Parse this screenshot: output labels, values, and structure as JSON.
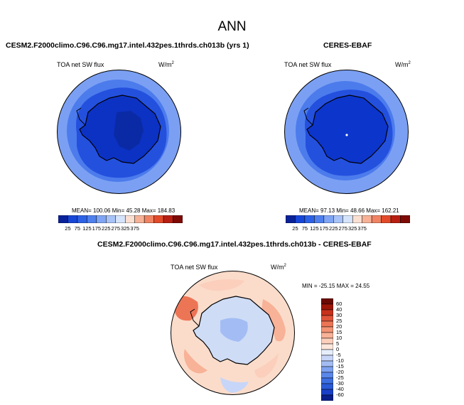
{
  "main_title": "ANN",
  "panels": [
    {
      "case_title": "CESM2.F2000climo.C96.C96.mg17.intel.432pes.1thrds.ch013b (yrs 1)",
      "variable": "TOA net SW flux",
      "units_base": "W/m",
      "units_exp": "2",
      "stats": "MEAN= 100.06  Min=  45.28  Max= 184.83",
      "colorbar_labels": [
        "25",
        "75",
        "125",
        "175",
        "225",
        "275",
        "325",
        "375"
      ]
    },
    {
      "case_title": "CERES-EBAF",
      "variable": "TOA net SW flux",
      "units_base": "W/m",
      "units_exp": "2",
      "stats": "MEAN=  97.13  Min=  48.66  Max= 162.21",
      "colorbar_labels": [
        "25",
        "75",
        "125",
        "175",
        "225",
        "275",
        "325",
        "375"
      ]
    }
  ],
  "diff_panel": {
    "case_title": "CESM2.F2000climo.C96.C96.mg17.intel.432pes.1thrds.ch013b - CERES-EBAF",
    "variable": "TOA net SW flux",
    "units_base": "W/m",
    "units_exp": "2",
    "stats": "MIN = -25.15 MAX =  24.55",
    "colorbar_labels": [
      "60",
      "40",
      "30",
      "25",
      "20",
      "15",
      "10",
      "5",
      "0",
      "-5",
      "-10",
      "-15",
      "-20",
      "-25",
      "-30",
      "-40",
      "-60"
    ]
  },
  "colors": {
    "seq": [
      "#0a2299",
      "#1747d8",
      "#2d62e6",
      "#4f80ee",
      "#7fa5f4",
      "#a8c3f7",
      "#d6e4fb",
      "#fbe0d2",
      "#f6b196",
      "#ef8363",
      "#e24a2a",
      "#b81f12",
      "#7e0a05"
    ],
    "div": [
      "#0b1f8a",
      "#1a3fc7",
      "#2a5ad8",
      "#3d6fe2",
      "#5a88ea",
      "#7ea2f0",
      "#a3bdf4",
      "#c7d6f8",
      "#e6eefb",
      "#fde7dc",
      "#fbcfbc",
      "#f8b297",
      "#f39474",
      "#ec7556",
      "#e0543a",
      "#c8311c",
      "#9e1608",
      "#6b0a03"
    ],
    "land_model": "#0c32c4",
    "land_model_inner": "#0a2aa5",
    "land_obs": "#0c35cc",
    "ring1": "#2450de",
    "ring2": "#4c7bec",
    "ring3": "#7ba0f3",
    "diff_ocean": "#fbdccb",
    "diff_land": "#cfdcf6"
  }
}
